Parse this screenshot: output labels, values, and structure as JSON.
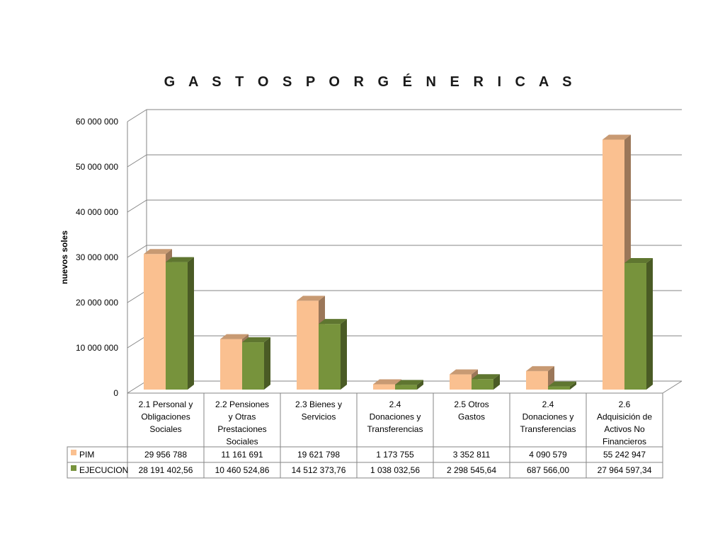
{
  "chart_data": {
    "type": "bar",
    "title": "G A S T O S   P O R   G É N E R I C A S",
    "ylabel": "nuevos soles",
    "ylim": [
      0,
      60000000
    ],
    "yticks": [
      0,
      10000000,
      20000000,
      30000000,
      40000000,
      50000000,
      60000000
    ],
    "ytick_labels": [
      "0",
      "10 000 000",
      "20 000 000",
      "30 000 000",
      "40 000 000",
      "50 000 000",
      "60 000 000"
    ],
    "categories": [
      "2.1 Personal y Obligaciones Sociales",
      "2.2 Pensiones y Otras Prestaciones Sociales",
      "2.3 Bienes y Servicios",
      "2.4 Donaciones y Transferencias",
      "2.5 Otros Gastos",
      "2.4 Donaciones y Transferencias",
      "2.6 Adquisición de Activos No Financieros"
    ],
    "category_lines": [
      [
        "2.1 Personal y",
        "Obligaciones",
        "Sociales"
      ],
      [
        "2.2 Pensiones",
        "y Otras",
        "Prestaciones",
        "Sociales"
      ],
      [
        "2.3 Bienes y",
        "Servicios"
      ],
      [
        "2.4",
        "Donaciones y",
        "Transferencias"
      ],
      [
        "2.5 Otros",
        "Gastos"
      ],
      [
        "2.4",
        "Donaciones y",
        "Transferencias"
      ],
      [
        "2.6",
        "Adquisición de",
        "Activos No",
        "Financieros"
      ]
    ],
    "series": [
      {
        "name": "PIM",
        "color": "#FAC090",
        "values": [
          29956788,
          11161691,
          19621798,
          1173755,
          3352811,
          4090579,
          55242947
        ],
        "labels": [
          "29 956 788",
          "11 161 691",
          "19 621 798",
          "1 173 755",
          "3 352 811",
          "4 090 579",
          "55 242 947"
        ]
      },
      {
        "name": "EJECUCION",
        "color": "#77933C",
        "values": [
          28191402.56,
          10460524.86,
          14512373.76,
          1038032.56,
          2298545.64,
          687566.0,
          27964597.34
        ],
        "labels": [
          "28 191 402,56",
          "10 460 524,86",
          "14 512 373,76",
          "1 038 032,56",
          "2 298 545,64",
          "687 566,00",
          "27 964 597,34"
        ]
      }
    ],
    "grid": true,
    "legend": "data-table"
  }
}
